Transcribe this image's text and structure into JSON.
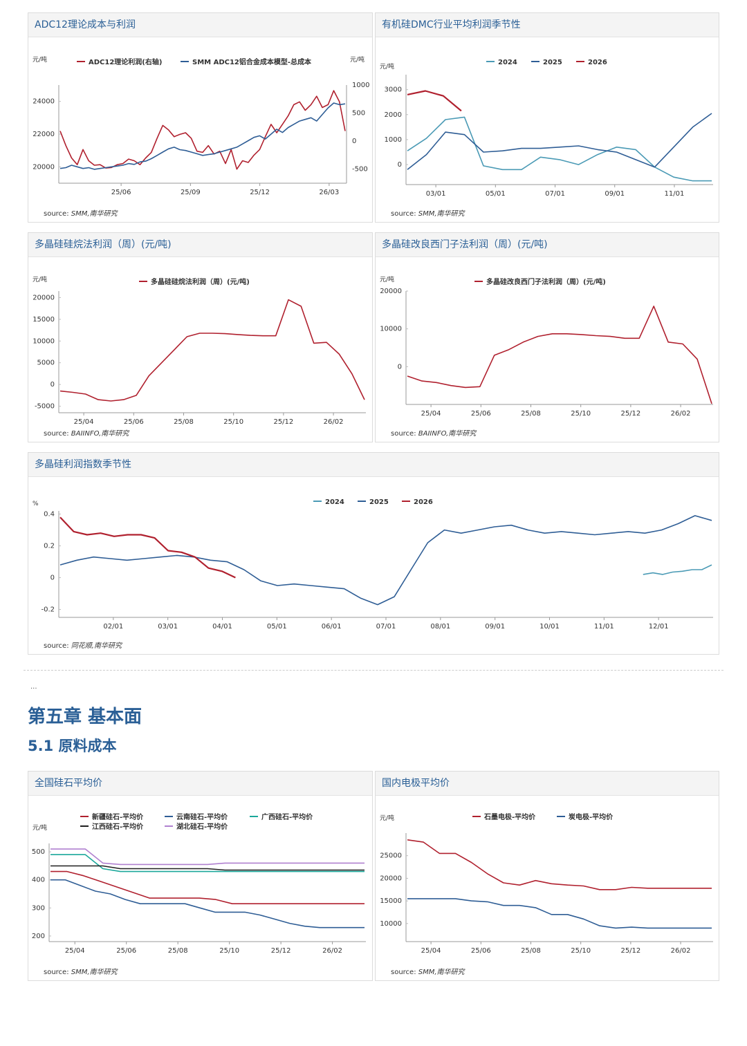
{
  "colors": {
    "red": "#b0202e",
    "blue": "#2e5d95",
    "lightblue": "#4a9ab5",
    "teal": "#1aa79a",
    "black": "#1f1f1f",
    "purple": "#b080d0",
    "title": "#2a5f96"
  },
  "section": {
    "ellipsis": "...",
    "chapter": "第五章 基本面",
    "subsection": "5.1 原料成本"
  },
  "charts": [
    {
      "id": "adc12",
      "title": "ADC12理论成本与利润",
      "source_label": "source:",
      "source": "SMM,南华研究",
      "yleft_unit": "元/吨",
      "yright_unit": "元/吨",
      "chart_data": {
        "type": "line",
        "title": "ADC12理论成本与利润",
        "yleft_ticks": [
          "24000",
          "22000",
          "20000"
        ],
        "yright_ticks": [
          "1000",
          "500",
          "0",
          "-500"
        ],
        "x_ticks": [
          "25/06",
          "25/09",
          "25/12",
          "26/03"
        ],
        "ylim_left": [
          19000,
          25000
        ],
        "ylim_right": [
          -750,
          1000
        ],
        "series": [
          {
            "name": "ADC12理论利润(右轴)",
            "axis": "right",
            "color": "red",
            "values": [
              180,
              -80,
              -300,
              -420,
              -150,
              -350,
              -430,
              -420,
              -480,
              -470,
              -420,
              -400,
              -320,
              -350,
              -420,
              -300,
              -200,
              50,
              280,
              200,
              80,
              120,
              150,
              50,
              -180,
              -200,
              -80,
              -230,
              -180,
              -400,
              -150,
              -500,
              -350,
              -380,
              -250,
              -150,
              80,
              300,
              150,
              300,
              450,
              650,
              700,
              550,
              650,
              800,
              600,
              650,
              900,
              700,
              180
            ]
          },
          {
            "name": "SMM ADC12铝合金成本模型-总成本",
            "axis": "left",
            "color": "blue",
            "values": [
              19900,
              19950,
              20100,
              20000,
              19900,
              19950,
              19850,
              19900,
              19950,
              20000,
              20050,
              20100,
              20200,
              20150,
              20300,
              20350,
              20500,
              20700,
              20900,
              21100,
              21200,
              21050,
              21000,
              20900,
              20800,
              20700,
              20750,
              20800,
              20900,
              21000,
              21100,
              21200,
              21400,
              21600,
              21800,
              21900,
              21700,
              22000,
              22300,
              22100,
              22400,
              22600,
              22800,
              22900,
              23000,
              22800,
              23200,
              23600,
              23900,
              23800,
              23850
            ]
          }
        ]
      }
    },
    {
      "id": "dmc",
      "title": "有机硅DMC行业平均利润季节性",
      "source_label": "source:",
      "source": "SMM,南华研究",
      "yleft_unit": "元/吨",
      "chart_data": {
        "type": "line",
        "title": "有机硅DMC行业平均利润季节性",
        "yleft_ticks": [
          "3000",
          "2000",
          "1000",
          "0"
        ],
        "x_ticks": [
          "03/01",
          "05/01",
          "07/01",
          "09/01",
          "11/01"
        ],
        "ylim": [
          -800,
          3600
        ],
        "series": [
          {
            "name": "2024",
            "color": "lightblue",
            "values": [
              550,
              1050,
              1800,
              1900,
              -50,
              -200,
              -200,
              300,
              200,
              0,
              400,
              700,
              600,
              -100,
              -500,
              -650,
              -650
            ]
          },
          {
            "name": "2025",
            "color": "blue",
            "values": [
              -200,
              400,
              1300,
              1200,
              500,
              550,
              650,
              650,
              700,
              750,
              600,
              500,
              200,
              -100,
              700,
              1500,
              2050
            ]
          },
          {
            "name": "2026",
            "color": "red",
            "values": [
              2800,
              2950,
              2750,
              2150
            ]
          }
        ]
      }
    },
    {
      "id": "poly_silane",
      "title": "多晶硅硅烷法利润（周）(元/吨)",
      "source_label": "source:",
      "source": "BAIINFO,南华研究",
      "yleft_unit": "元/吨",
      "chart_data": {
        "type": "line",
        "title": "多晶硅硅烷法利润（周）(元/吨)",
        "yleft_ticks": [
          "20000",
          "15000",
          "10000",
          "5000",
          "0",
          "-5000"
        ],
        "x_ticks": [
          "25/04",
          "25/06",
          "25/08",
          "25/10",
          "25/12",
          "26/02"
        ],
        "ylim": [
          -6500,
          21500
        ],
        "series": [
          {
            "name": "多晶硅硅烷法利润（周）(元/吨)",
            "color": "red",
            "values": [
              -1500,
              -1800,
              -2200,
              -3500,
              -3800,
              -3500,
              -2500,
              2000,
              5000,
              8000,
              11000,
              11800,
              11800,
              11700,
              11500,
              11300,
              11200,
              11200,
              19500,
              18000,
              9500,
              9700,
              7000,
              2500,
              -3500
            ]
          }
        ]
      }
    },
    {
      "id": "poly_siemens",
      "title": "多晶硅改良西门子法利润（周）(元/吨)",
      "source_label": "source:",
      "source": "BAIINFO,南华研究",
      "yleft_unit": "元/吨",
      "chart_data": {
        "type": "line",
        "title": "多晶硅改良西门子法利润（周）(元/吨)",
        "yleft_ticks": [
          "20000",
          "10000",
          "0"
        ],
        "x_ticks": [
          "25/04",
          "25/06",
          "25/08",
          "25/10",
          "25/12",
          "26/02"
        ],
        "ylim": [
          -10000,
          20000
        ],
        "series": [
          {
            "name": "多晶硅改良西门子法利润（周）(元/吨)",
            "color": "red",
            "values": [
              -2500,
              -3800,
              -4200,
              -5000,
              -5500,
              -5300,
              3000,
              4500,
              6500,
              8000,
              8700,
              8700,
              8500,
              8200,
              8000,
              7500,
              7500,
              16000,
              6500,
              6000,
              2000,
              -9800
            ]
          }
        ]
      }
    },
    {
      "id": "poly_index",
      "title": "多晶硅利润指数季节性",
      "source_label": "source:",
      "source": "同花顺,南华研究",
      "yleft_unit": "%",
      "chart_data": {
        "type": "line",
        "title": "多晶硅利润指数季节性",
        "yleft_ticks": [
          "0.4",
          "0.2",
          "0",
          "-0.2"
        ],
        "x_ticks": [
          "02/01",
          "03/01",
          "04/01",
          "05/01",
          "06/01",
          "07/01",
          "08/01",
          "09/01",
          "10/01",
          "11/01",
          "12/01"
        ],
        "ylim": [
          -0.25,
          0.42
        ],
        "series": [
          {
            "name": "2024",
            "color": "lightblue",
            "values": [
              0.02,
              0.03,
              0.02,
              0.035,
              0.04,
              0.05,
              0.05,
              0.08
            ]
          },
          {
            "name": "2025",
            "color": "blue",
            "values": [
              0.08,
              0.11,
              0.13,
              0.12,
              0.11,
              0.12,
              0.13,
              0.14,
              0.13,
              0.11,
              0.1,
              0.05,
              -0.02,
              -0.05,
              -0.04,
              -0.05,
              -0.06,
              -0.07,
              -0.13,
              -0.17,
              -0.12,
              0.05,
              0.22,
              0.3,
              0.28,
              0.3,
              0.32,
              0.33,
              0.3,
              0.28,
              0.29,
              0.28,
              0.27,
              0.28,
              0.29,
              0.28,
              0.3,
              0.34,
              0.39,
              0.36
            ]
          },
          {
            "name": "2026",
            "color": "red",
            "values": [
              0.38,
              0.29,
              0.27,
              0.28,
              0.26,
              0.27,
              0.27,
              0.25,
              0.17,
              0.16,
              0.13,
              0.06,
              0.04,
              0.0
            ]
          }
        ]
      }
    },
    {
      "id": "silica",
      "title": "全国硅石平均价",
      "source_label": "source:",
      "source": "SMM,南华研究",
      "yleft_unit": "元/吨",
      "chart_data": {
        "type": "line",
        "title": "全国硅石平均价",
        "yleft_ticks": [
          "500",
          "400",
          "300",
          "200"
        ],
        "x_ticks": [
          "25/04",
          "25/06",
          "25/08",
          "25/10",
          "25/12",
          "26/02"
        ],
        "ylim": [
          180,
          530
        ],
        "series": [
          {
            "name": "新疆硅石-平均价",
            "color": "red",
            "values": [
              430,
              430,
              415,
              395,
              375,
              355,
              335,
              335,
              335,
              335,
              330,
              315,
              315,
              315,
              315,
              315,
              315,
              315,
              315,
              315
            ]
          },
          {
            "name": "云南硅石-平均价",
            "color": "blue",
            "values": [
              400,
              400,
              380,
              360,
              350,
              330,
              315,
              315,
              315,
              315,
              300,
              285,
              285,
              285,
              275,
              260,
              245,
              235,
              230,
              230,
              230,
              230
            ]
          },
          {
            "name": "广西硅石-平均价",
            "color": "teal",
            "values": [
              490,
              490,
              490,
              440,
              430,
              430,
              430,
              430,
              430,
              430,
              430,
              430,
              430,
              430,
              430,
              430,
              430,
              430,
              430
            ]
          },
          {
            "name": "江西硅石-平均价",
            "color": "black",
            "values": [
              450,
              450,
              450,
              450,
              440,
              440,
              440,
              440,
              440,
              440,
              435,
              435,
              435,
              435,
              435,
              435,
              435,
              435,
              435
            ]
          },
          {
            "name": "湖北硅石-平均价",
            "color": "purple",
            "values": [
              510,
              510,
              510,
              460,
              455,
              455,
              455,
              455,
              455,
              455,
              460,
              460,
              460,
              460,
              460,
              460,
              460,
              460,
              460
            ]
          }
        ]
      }
    },
    {
      "id": "electrode",
      "title": "国内电极平均价",
      "source_label": "source:",
      "source": "SMM,南华研究",
      "yleft_unit": "元/吨",
      "chart_data": {
        "type": "line",
        "title": "国内电极平均价",
        "yleft_ticks": [
          "25000",
          "20000",
          "15000",
          "10000"
        ],
        "x_ticks": [
          "25/04",
          "25/06",
          "25/08",
          "25/10",
          "25/12",
          "26/02"
        ],
        "ylim": [
          6000,
          30000
        ],
        "series": [
          {
            "name": "石墨电极-平均价",
            "color": "red",
            "values": [
              28500,
              28000,
              25500,
              25500,
              23500,
              21000,
              19000,
              18500,
              19500,
              18800,
              18500,
              18300,
              17500,
              17500,
              18000,
              17800,
              17800,
              17800,
              17800,
              17800
            ]
          },
          {
            "name": "炭电极-平均价",
            "color": "blue",
            "values": [
              15500,
              15500,
              15500,
              15500,
              15000,
              14800,
              14000,
              14000,
              13500,
              12000,
              12000,
              11000,
              9500,
              9000,
              9200,
              9000,
              9000,
              9000,
              9000,
              9000
            ]
          }
        ]
      }
    }
  ]
}
